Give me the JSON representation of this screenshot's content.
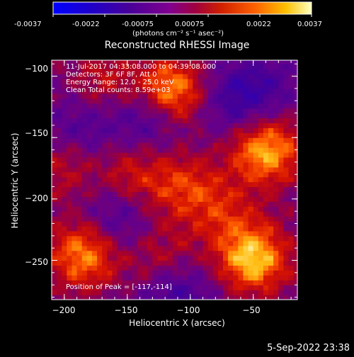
{
  "colors": {
    "background": "#000000",
    "text": "#ffffff",
    "colormap": [
      "#0000ff",
      "#1a00a0",
      "#3a0090",
      "#6000a0",
      "#8a0080",
      "#b00030",
      "#d81800",
      "#ff6000",
      "#ffb000",
      "#ffff80"
    ]
  },
  "colorbar": {
    "tick_labels": [
      "-0.0037",
      "-0.0022",
      "-0.00075",
      "0.00075",
      "0.0022",
      "0.0037"
    ],
    "units_label": "(photons cm⁻² s⁻¹ asec⁻²)"
  },
  "plot": {
    "title": "Reconstructed RHESSI Image",
    "info_lines": [
      "11-Jul-2017 04:33:08.000 to 04:39:08.000",
      "Detectors: 3F 6F 8F, Att 0",
      "Energy Range: 12.0 - 25.0 keV",
      "Clean    Total counts: 8.59e+03"
    ],
    "peak_text": "Position of Peak = [-117,-114]"
  },
  "footer": {
    "timestamp": "5-Sep-2022 23:38"
  },
  "chart_data": {
    "type": "heatmap",
    "title": "Reconstructed RHESSI Image",
    "xlabel": "Heliocentric X (arcsec)",
    "ylabel": "Heliocentric Y (arcsec)",
    "xlim": [
      -210,
      -15
    ],
    "ylim": [
      -282,
      -87
    ],
    "x_ticks": [
      -200,
      -150,
      -100,
      -50
    ],
    "y_ticks": [
      -100,
      -150,
      -200,
      -250
    ],
    "x_tick_labels": [
      "−200",
      "−150",
      "−100",
      "−50"
    ],
    "y_tick_labels": [
      "−100",
      "−150",
      "−200",
      "−250"
    ],
    "color_range": [
      -0.0037,
      0.0037
    ],
    "colormap": "blue-purple-red-yellow-white",
    "grid": false,
    "peak": [
      -117,
      -114
    ],
    "sources": [
      {
        "x": -117,
        "y": -114,
        "level": 1.0
      },
      {
        "x": -40,
        "y": -160,
        "level": 0.85
      },
      {
        "x": -50,
        "y": -248,
        "level": 0.9
      },
      {
        "x": -185,
        "y": -245,
        "level": 0.75
      },
      {
        "x": -145,
        "y": -180,
        "level": 0.4
      },
      {
        "x": -105,
        "y": -190,
        "level": 0.45
      },
      {
        "x": -170,
        "y": -105,
        "level": 0.35
      },
      {
        "x": -75,
        "y": -210,
        "level": 0.35
      },
      {
        "x": -120,
        "y": -250,
        "level": 0.35
      },
      {
        "x": -200,
        "y": -175,
        "level": 0.3
      }
    ],
    "negative_regions": [
      {
        "x": -130,
        "y": -130,
        "level": -0.6
      },
      {
        "x": -65,
        "y": -120,
        "level": -0.4
      },
      {
        "x": -160,
        "y": -215,
        "level": -0.35
      },
      {
        "x": -110,
        "y": -275,
        "level": -0.45
      },
      {
        "x": -185,
        "y": -140,
        "level": -0.3
      },
      {
        "x": -40,
        "y": -110,
        "level": -0.25
      }
    ]
  }
}
